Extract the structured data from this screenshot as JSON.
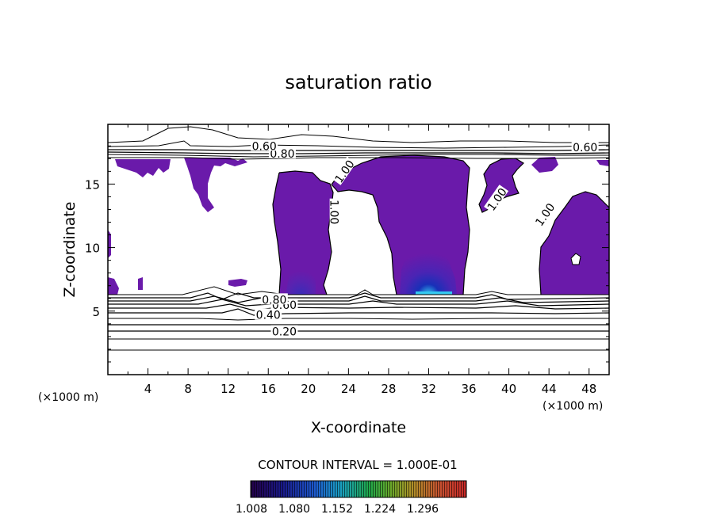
{
  "chart_data": {
    "type": "heatmap",
    "title": "saturation ratio",
    "xlabel": "X-coordinate",
    "ylabel": "Z-coordinate",
    "x_unit": "(×1000 m)",
    "z_unit": "(×1000 m)",
    "xlim": [
      0,
      50
    ],
    "ylim": [
      0,
      19.7
    ],
    "x_ticks": [
      4,
      8,
      12,
      16,
      20,
      24,
      28,
      32,
      36,
      40,
      44,
      48
    ],
    "y_ticks": [
      5,
      10,
      15
    ],
    "contour_labels": [
      {
        "text": "0.20",
        "x": 17.6,
        "y": 3.4
      },
      {
        "text": "0.40",
        "x": 16.0,
        "y": 4.7
      },
      {
        "text": "0.60",
        "x": 17.6,
        "y": 5.5
      },
      {
        "text": "0.80",
        "x": 16.6,
        "y": 5.9
      },
      {
        "text": "0.60",
        "x": 47.6,
        "y": 17.9
      },
      {
        "text": "0.80",
        "x": 17.4,
        "y": 17.4
      },
      {
        "text": "0.60",
        "x": 15.6,
        "y": 18.0
      },
      {
        "text": "1.00",
        "x": 23.6,
        "y": 16.0
      },
      {
        "text": "1.00",
        "x": 22.6,
        "y": 12.8
      },
      {
        "text": "1.00",
        "x": 38.8,
        "y": 13.8
      },
      {
        "text": "1.00",
        "x": 43.6,
        "y": 12.6
      }
    ],
    "contour_interval_label": "CONTOUR INTERVAL = 1.000E-01",
    "colorbar": {
      "ticks": [
        "1.008",
        "1.080",
        "1.152",
        "1.224",
        "1.296"
      ],
      "colors": [
        "#2a0058",
        "#1a1a9a",
        "#1e63d8",
        "#19a6c8",
        "#22b35c",
        "#6ac02a",
        "#c0a830",
        "#d0603a",
        "#c82a2a"
      ]
    },
    "fill_color": "#6a1aaa",
    "core_colors": [
      "#3c3cc8",
      "#2d5ce6",
      "#34c8f0"
    ]
  }
}
